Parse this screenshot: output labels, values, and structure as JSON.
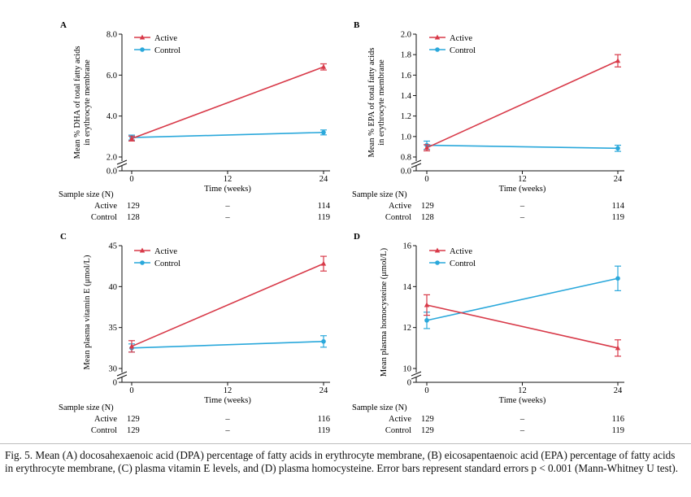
{
  "colors": {
    "active": "#d83a49",
    "control": "#2aa8db",
    "axis": "#111111"
  },
  "sample_size_label": "Sample size (N)",
  "x_label": "Time (weeks)",
  "chart_data": [
    {
      "panel": "A",
      "type": "line",
      "ylabel_lines": [
        "Mean % DHA of total fatty acids",
        "in erythrocyte membrane"
      ],
      "x_ticks": [
        0,
        12,
        24
      ],
      "y_ticks": [
        "0.0",
        "2.0",
        "4.0",
        "6.0",
        "8.0"
      ],
      "y_tick_values": [
        2,
        4,
        6,
        8
      ],
      "ylim": [
        2,
        8
      ],
      "axis_break": true,
      "series": [
        {
          "name": "Active",
          "x": [
            0,
            24
          ],
          "y": [
            2.9,
            6.4
          ],
          "err": [
            0.12,
            0.15
          ]
        },
        {
          "name": "Control",
          "x": [
            0,
            24
          ],
          "y": [
            2.95,
            3.2
          ],
          "err": [
            0.12,
            0.12
          ]
        }
      ],
      "sample_size": {
        "Active": [
          "129",
          "–",
          "114"
        ],
        "Control": [
          "128",
          "–",
          "119"
        ]
      }
    },
    {
      "panel": "B",
      "type": "line",
      "ylabel_lines": [
        "Mean % EPA of total fatty acids",
        "in erythrocyte membrane"
      ],
      "x_ticks": [
        0,
        12,
        24
      ],
      "y_ticks": [
        "0.0",
        "0.8",
        "1.0",
        "1.2",
        "1.4",
        "1.6",
        "1.8",
        "2.0"
      ],
      "y_tick_values": [
        0.8,
        1.0,
        1.2,
        1.4,
        1.6,
        1.8,
        2.0
      ],
      "ylim": [
        0.8,
        2.0
      ],
      "axis_break": true,
      "series": [
        {
          "name": "Active",
          "x": [
            0,
            24
          ],
          "y": [
            0.89,
            1.74
          ],
          "err": [
            0.03,
            0.06
          ]
        },
        {
          "name": "Control",
          "x": [
            0,
            24
          ],
          "y": [
            0.915,
            0.885
          ],
          "err": [
            0.04,
            0.03
          ]
        }
      ],
      "sample_size": {
        "Active": [
          "129",
          "–",
          "114"
        ],
        "Control": [
          "128",
          "–",
          "119"
        ]
      }
    },
    {
      "panel": "C",
      "type": "line",
      "ylabel_lines": [
        "Mean plasma vitamin E (μmol/L)"
      ],
      "x_ticks": [
        0,
        12,
        24
      ],
      "y_ticks": [
        "0",
        "30",
        "35",
        "40",
        "45"
      ],
      "y_tick_values": [
        30,
        35,
        40,
        45
      ],
      "ylim": [
        30,
        45
      ],
      "axis_break": true,
      "series": [
        {
          "name": "Active",
          "x": [
            0,
            24
          ],
          "y": [
            32.7,
            42.8
          ],
          "err": [
            0.7,
            0.9
          ]
        },
        {
          "name": "Control",
          "x": [
            0,
            24
          ],
          "y": [
            32.5,
            33.3
          ],
          "err": [
            0.5,
            0.7
          ]
        }
      ],
      "sample_size": {
        "Active": [
          "129",
          "–",
          "116"
        ],
        "Control": [
          "129",
          "–",
          "119"
        ]
      }
    },
    {
      "panel": "D",
      "type": "line",
      "ylabel_lines": [
        "Mean plasma homocysteine (μmol/L)"
      ],
      "x_ticks": [
        0,
        12,
        24
      ],
      "y_ticks": [
        "0",
        "10",
        "12",
        "14",
        "16"
      ],
      "y_tick_values": [
        10,
        12,
        14,
        16
      ],
      "ylim": [
        10,
        16
      ],
      "axis_break": true,
      "series": [
        {
          "name": "Active",
          "x": [
            0,
            24
          ],
          "y": [
            13.1,
            11.0
          ],
          "err": [
            0.5,
            0.4
          ]
        },
        {
          "name": "Control",
          "x": [
            0,
            24
          ],
          "y": [
            12.35,
            14.4
          ],
          "err": [
            0.4,
            0.6
          ]
        }
      ],
      "sample_size": {
        "Active": [
          "129",
          "–",
          "116"
        ],
        "Control": [
          "129",
          "–",
          "119"
        ]
      }
    }
  ],
  "caption": "Fig. 5.  Mean (A) docosahexaenoic acid (DPA) percentage of fatty acids in erythrocyte membrane, (B) eicosapentaenoic acid (EPA) percentage of fatty acids in erythrocyte membrane, (C) plasma vitamin E levels, and (D) plasma homocysteine. Error bars represent standard errors p < 0.001 (Mann-Whitney U test)."
}
